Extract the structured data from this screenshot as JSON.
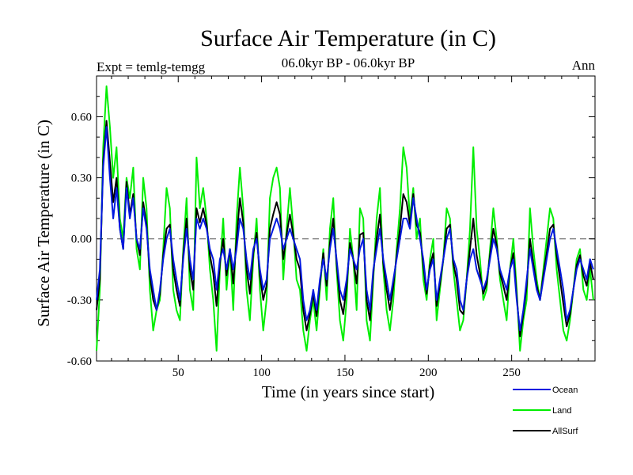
{
  "chart_data": {
    "type": "line",
    "title": "Surface Air Temperature (in C)",
    "subtitle": "06.0kyr BP - 06.0kyr BP",
    "expt_label": "Expt = temlg-temgg",
    "period_label": "Ann",
    "xlabel": "Time (in years since start)",
    "ylabel": "Surface Air Temperature (in C)",
    "xlim": [
      1,
      300
    ],
    "ylim": [
      -0.6,
      0.8
    ],
    "xticks": [
      50,
      100,
      150,
      200,
      250
    ],
    "yticks": [
      -0.6,
      -0.3,
      0.0,
      0.3,
      0.6
    ],
    "ytick_labels": [
      "-0.60",
      "-0.30",
      "0.00",
      "0.30",
      "0.60"
    ],
    "zero_line": true,
    "legend_position": "bottom-right, outside plot",
    "series": [
      {
        "name": "Ocean",
        "color": "#0018e0",
        "x": [
          1,
          3,
          5,
          7,
          9,
          11,
          13,
          15,
          17,
          19,
          21,
          23,
          25,
          27,
          29,
          31,
          33,
          35,
          37,
          39,
          41,
          43,
          45,
          47,
          49,
          51,
          53,
          55,
          57,
          59,
          61,
          63,
          65,
          67,
          69,
          71,
          73,
          75,
          77,
          79,
          81,
          83,
          85,
          87,
          89,
          91,
          93,
          95,
          97,
          99,
          101,
          103,
          105,
          107,
          109,
          111,
          113,
          115,
          117,
          119,
          121,
          123,
          125,
          127,
          129,
          131,
          133,
          135,
          137,
          139,
          141,
          143,
          145,
          147,
          149,
          151,
          153,
          155,
          157,
          159,
          161,
          163,
          165,
          167,
          169,
          171,
          173,
          175,
          177,
          179,
          181,
          183,
          185,
          187,
          189,
          191,
          193,
          195,
          197,
          199,
          201,
          203,
          205,
          207,
          209,
          211,
          213,
          215,
          217,
          219,
          221,
          223,
          225,
          227,
          229,
          231,
          233,
          235,
          237,
          239,
          241,
          243,
          245,
          247,
          249,
          251,
          253,
          255,
          257,
          259,
          261,
          263,
          265,
          267,
          269,
          271,
          273,
          275,
          277,
          279,
          281,
          283,
          285,
          287,
          289,
          291,
          293,
          295,
          297,
          299
        ],
        "y": [
          -0.3,
          -0.15,
          0.35,
          0.55,
          0.3,
          0.1,
          0.25,
          0.05,
          -0.05,
          0.25,
          0.1,
          0.2,
          0.0,
          -0.05,
          0.15,
          0.05,
          -0.15,
          -0.25,
          -0.35,
          -0.25,
          -0.1,
          0.0,
          0.05,
          -0.1,
          -0.2,
          -0.3,
          -0.1,
          0.05,
          -0.1,
          -0.2,
          0.1,
          0.05,
          0.1,
          0.05,
          -0.05,
          -0.1,
          -0.25,
          -0.1,
          -0.05,
          -0.15,
          -0.05,
          -0.15,
          -0.05,
          0.1,
          0.05,
          -0.1,
          -0.2,
          -0.05,
          0.0,
          -0.15,
          -0.25,
          -0.2,
          0.0,
          0.05,
          0.1,
          0.05,
          -0.05,
          0.0,
          0.05,
          0.0,
          -0.05,
          -0.1,
          -0.3,
          -0.4,
          -0.35,
          -0.25,
          -0.35,
          -0.2,
          -0.1,
          -0.2,
          -0.05,
          0.05,
          -0.1,
          -0.25,
          -0.3,
          -0.2,
          -0.05,
          -0.1,
          -0.15,
          -0.05,
          0.0,
          -0.25,
          -0.35,
          -0.15,
          -0.05,
          0.05,
          -0.1,
          -0.2,
          -0.3,
          -0.2,
          -0.1,
          0.0,
          0.1,
          0.1,
          0.05,
          0.2,
          0.1,
          0.0,
          -0.1,
          -0.25,
          -0.15,
          -0.1,
          -0.3,
          -0.2,
          -0.1,
          0.0,
          0.05,
          -0.1,
          -0.15,
          -0.3,
          -0.35,
          -0.2,
          -0.1,
          -0.05,
          -0.15,
          -0.2,
          -0.25,
          -0.2,
          -0.1,
          0.0,
          -0.05,
          -0.15,
          -0.2,
          -0.25,
          -0.15,
          -0.1,
          -0.3,
          -0.45,
          -0.35,
          -0.2,
          -0.05,
          -0.15,
          -0.25,
          -0.3,
          -0.2,
          -0.1,
          0.0,
          0.05,
          -0.05,
          -0.15,
          -0.25,
          -0.4,
          -0.35,
          -0.25,
          -0.15,
          -0.1,
          -0.15,
          -0.2,
          -0.1,
          -0.15
        ],
        "y_step": 2
      },
      {
        "name": "Land",
        "color": "#00ee00",
        "x": [
          1,
          3,
          5,
          7,
          9,
          11,
          13,
          15,
          17,
          19,
          21,
          23,
          25,
          27,
          29,
          31,
          33,
          35,
          37,
          39,
          41,
          43,
          45,
          47,
          49,
          51,
          53,
          55,
          57,
          59,
          61,
          63,
          65,
          67,
          69,
          71,
          73,
          75,
          77,
          79,
          81,
          83,
          85,
          87,
          89,
          91,
          93,
          95,
          97,
          99,
          101,
          103,
          105,
          107,
          109,
          111,
          113,
          115,
          117,
          119,
          121,
          123,
          125,
          127,
          129,
          131,
          133,
          135,
          137,
          139,
          141,
          143,
          145,
          147,
          149,
          151,
          153,
          155,
          157,
          159,
          161,
          163,
          165,
          167,
          169,
          171,
          173,
          175,
          177,
          179,
          181,
          183,
          185,
          187,
          189,
          191,
          193,
          195,
          197,
          199,
          201,
          203,
          205,
          207,
          209,
          211,
          213,
          215,
          217,
          219,
          221,
          223,
          225,
          227,
          229,
          231,
          233,
          235,
          237,
          239,
          241,
          243,
          245,
          247,
          249,
          251,
          253,
          255,
          257,
          259,
          261,
          263,
          265,
          267,
          269,
          271,
          273,
          275,
          277,
          279,
          281,
          283,
          285,
          287,
          289,
          291,
          293,
          295,
          297,
          299
        ],
        "y": [
          -0.55,
          -0.25,
          0.45,
          0.75,
          0.55,
          0.3,
          0.45,
          0.1,
          0.0,
          0.3,
          0.2,
          0.35,
          -0.05,
          -0.15,
          0.3,
          0.15,
          -0.25,
          -0.45,
          -0.35,
          -0.3,
          -0.05,
          0.25,
          0.15,
          -0.25,
          -0.35,
          -0.4,
          -0.05,
          0.2,
          -0.25,
          -0.35,
          0.4,
          0.15,
          0.25,
          0.1,
          -0.15,
          -0.3,
          -0.55,
          -0.15,
          0.1,
          -0.25,
          -0.05,
          -0.35,
          0.1,
          0.35,
          0.15,
          -0.25,
          -0.4,
          -0.1,
          0.1,
          -0.25,
          -0.45,
          -0.3,
          0.2,
          0.3,
          0.35,
          0.25,
          -0.2,
          0.05,
          0.25,
          0.05,
          -0.2,
          -0.25,
          -0.45,
          -0.55,
          -0.4,
          -0.3,
          -0.45,
          -0.25,
          -0.05,
          -0.3,
          0.05,
          0.2,
          -0.15,
          -0.4,
          -0.5,
          -0.3,
          0.05,
          -0.1,
          -0.35,
          0.15,
          0.1,
          -0.4,
          -0.5,
          -0.2,
          0.1,
          0.25,
          -0.15,
          -0.35,
          -0.45,
          -0.3,
          -0.05,
          0.15,
          0.45,
          0.35,
          0.1,
          0.25,
          0.0,
          0.1,
          -0.2,
          -0.3,
          -0.1,
          0.0,
          -0.4,
          -0.25,
          -0.1,
          0.15,
          0.1,
          -0.15,
          -0.3,
          -0.45,
          -0.4,
          -0.2,
          0.05,
          0.45,
          0.05,
          -0.1,
          -0.3,
          -0.25,
          -0.05,
          0.15,
          0.0,
          -0.2,
          -0.3,
          -0.4,
          -0.15,
          0.0,
          -0.25,
          -0.55,
          -0.4,
          -0.3,
          0.15,
          -0.05,
          -0.2,
          -0.3,
          -0.15,
          0.0,
          0.15,
          0.1,
          -0.15,
          -0.3,
          -0.45,
          -0.5,
          -0.4,
          -0.25,
          -0.1,
          -0.05,
          -0.25,
          -0.3,
          -0.15,
          -0.3
        ],
        "y_step": 2
      },
      {
        "name": "AllSurf",
        "color": "#000000",
        "x": [
          1,
          3,
          5,
          7,
          9,
          11,
          13,
          15,
          17,
          19,
          21,
          23,
          25,
          27,
          29,
          31,
          33,
          35,
          37,
          39,
          41,
          43,
          45,
          47,
          49,
          51,
          53,
          55,
          57,
          59,
          61,
          63,
          65,
          67,
          69,
          71,
          73,
          75,
          77,
          79,
          81,
          83,
          85,
          87,
          89,
          91,
          93,
          95,
          97,
          99,
          101,
          103,
          105,
          107,
          109,
          111,
          113,
          115,
          117,
          119,
          121,
          123,
          125,
          127,
          129,
          131,
          133,
          135,
          137,
          139,
          141,
          143,
          145,
          147,
          149,
          151,
          153,
          155,
          157,
          159,
          161,
          163,
          165,
          167,
          169,
          171,
          173,
          175,
          177,
          179,
          181,
          183,
          185,
          187,
          189,
          191,
          193,
          195,
          197,
          199,
          201,
          203,
          205,
          207,
          209,
          211,
          213,
          215,
          217,
          219,
          221,
          223,
          225,
          227,
          229,
          231,
          233,
          235,
          237,
          239,
          241,
          243,
          245,
          247,
          249,
          251,
          253,
          255,
          257,
          259,
          261,
          263,
          265,
          267,
          269,
          271,
          273,
          275,
          277,
          279,
          281,
          283,
          285,
          287,
          289,
          291,
          293,
          295,
          297,
          299
        ],
        "y": [
          -0.35,
          -0.2,
          0.38,
          0.58,
          0.38,
          0.18,
          0.3,
          0.05,
          -0.05,
          0.28,
          0.12,
          0.22,
          0.0,
          -0.08,
          0.18,
          0.07,
          -0.18,
          -0.3,
          -0.35,
          -0.27,
          -0.08,
          0.05,
          0.07,
          -0.15,
          -0.25,
          -0.33,
          -0.08,
          0.1,
          -0.15,
          -0.25,
          0.15,
          0.08,
          0.15,
          0.07,
          -0.08,
          -0.17,
          -0.33,
          -0.12,
          0.0,
          -0.18,
          -0.05,
          -0.22,
          0.0,
          0.2,
          0.08,
          -0.15,
          -0.27,
          -0.07,
          0.03,
          -0.18,
          -0.3,
          -0.23,
          0.05,
          0.12,
          0.18,
          0.12,
          -0.1,
          0.02,
          0.12,
          0.02,
          -0.1,
          -0.15,
          -0.35,
          -0.45,
          -0.37,
          -0.27,
          -0.38,
          -0.22,
          -0.07,
          -0.23,
          -0.02,
          0.1,
          -0.12,
          -0.3,
          -0.37,
          -0.23,
          -0.02,
          -0.1,
          -0.22,
          0.02,
          0.03,
          -0.3,
          -0.4,
          -0.17,
          0.0,
          0.12,
          -0.12,
          -0.25,
          -0.35,
          -0.23,
          -0.08,
          0.05,
          0.22,
          0.18,
          0.07,
          0.22,
          0.07,
          0.03,
          -0.13,
          -0.27,
          -0.13,
          -0.07,
          -0.33,
          -0.22,
          -0.1,
          0.05,
          0.07,
          -0.12,
          -0.2,
          -0.35,
          -0.37,
          -0.2,
          -0.05,
          0.1,
          -0.08,
          -0.17,
          -0.27,
          -0.22,
          -0.08,
          0.05,
          -0.03,
          -0.17,
          -0.23,
          -0.3,
          -0.15,
          -0.07,
          -0.28,
          -0.48,
          -0.37,
          -0.23,
          0.0,
          -0.12,
          -0.23,
          -0.3,
          -0.18,
          -0.07,
          0.05,
          0.07,
          -0.08,
          -0.2,
          -0.32,
          -0.43,
          -0.37,
          -0.25,
          -0.13,
          -0.08,
          -0.18,
          -0.23,
          -0.12,
          -0.2
        ],
        "y_step": 2
      }
    ]
  }
}
